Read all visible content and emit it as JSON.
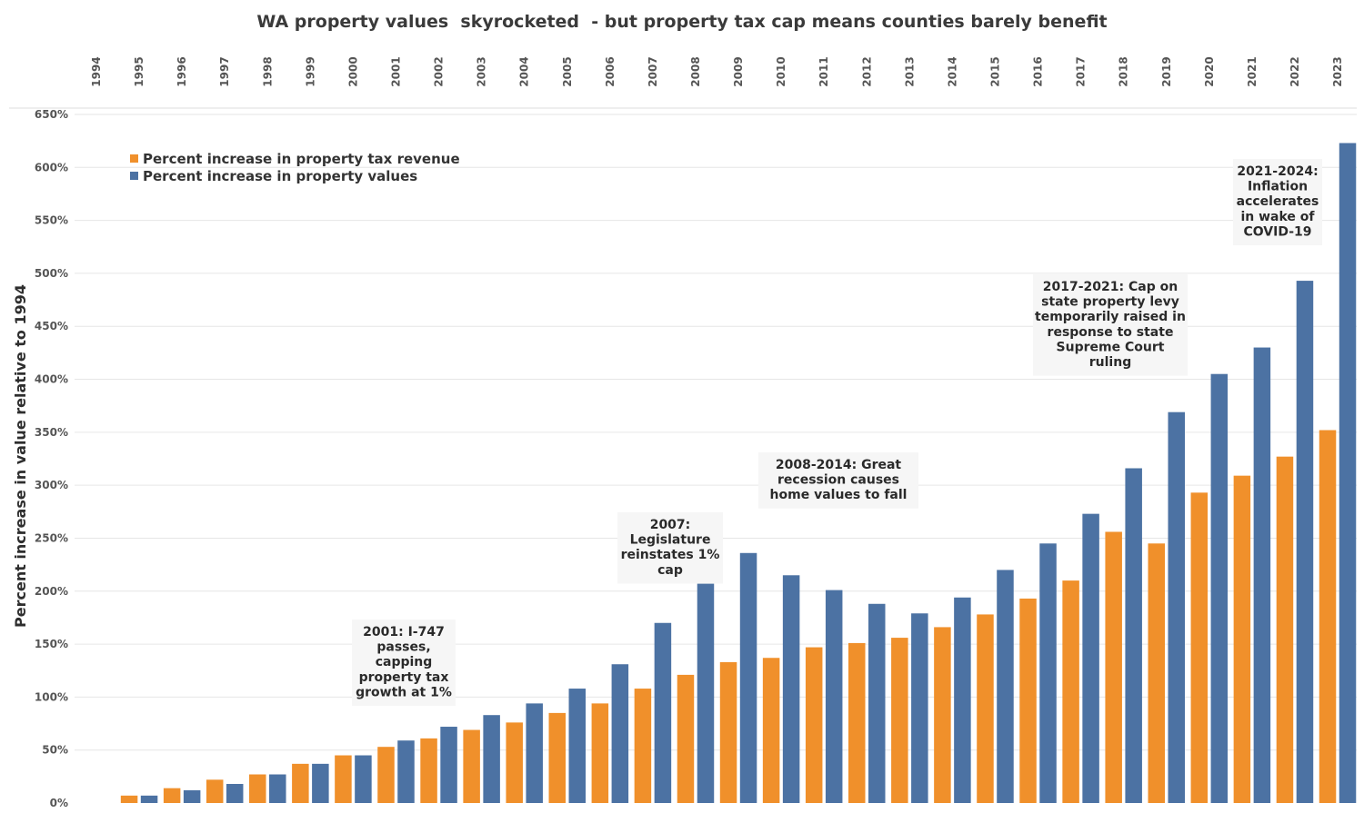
{
  "colors": {
    "series_tax": "#f0902b",
    "series_values": "#4c72a3",
    "annotation_bg": "#f6f6f6",
    "text": "#333333"
  },
  "chart_data": {
    "type": "bar",
    "title": "WA property values  skyrocketed  - but property tax cap means counties barely benefit",
    "ylabel": "Percent increase in value relative to 1994",
    "xlabel": "",
    "ylim": [
      0,
      650
    ],
    "y_ticks": [
      "0%",
      "50%",
      "100%",
      "150%",
      "200%",
      "250%",
      "300%",
      "350%",
      "400%",
      "450%",
      "500%",
      "550%",
      "600%",
      "650%"
    ],
    "y_tick_values": [
      0,
      50,
      100,
      150,
      200,
      250,
      300,
      350,
      400,
      450,
      500,
      550,
      600,
      650
    ],
    "x_axis_position": "top",
    "grid": true,
    "legend_position": "top-left",
    "categories": [
      "1994",
      "1995",
      "1996",
      "1997",
      "1998",
      "1999",
      "2000",
      "2001",
      "2002",
      "2003",
      "2004",
      "2005",
      "2006",
      "2007",
      "2008",
      "2009",
      "2010",
      "2011",
      "2012",
      "2013",
      "2014",
      "2015",
      "2016",
      "2017",
      "2018",
      "2019",
      "2020",
      "2021",
      "2022",
      "2023"
    ],
    "series": [
      {
        "name": "Percent increase in property tax revenue",
        "color": "#f0902b",
        "values": [
          0,
          7,
          14,
          22,
          27,
          37,
          45,
          53,
          61,
          69,
          76,
          85,
          94,
          108,
          121,
          133,
          137,
          147,
          151,
          156,
          166,
          178,
          193,
          210,
          256,
          245,
          293,
          309,
          327,
          352
        ]
      },
      {
        "name": "Percent increase in property values",
        "color": "#4c72a3",
        "values": [
          0,
          7,
          12,
          18,
          27,
          37,
          45,
          59,
          72,
          83,
          94,
          108,
          131,
          170,
          207,
          236,
          215,
          201,
          188,
          179,
          194,
          220,
          245,
          273,
          316,
          369,
          405,
          430,
          493,
          623
        ]
      }
    ],
    "annotations": [
      {
        "lines": [
          "2001: I-747",
          "passes,",
          "capping",
          "property tax",
          "growth  at 1%"
        ]
      },
      {
        "lines": [
          "2007:",
          "Legislature",
          "reinstates 1%",
          "cap"
        ]
      },
      {
        "lines": [
          "2008-2014: Great",
          "recession causes",
          "home values to fall"
        ]
      },
      {
        "lines": [
          "2017-2021: Cap on",
          "state property levy",
          "temporarily raised in",
          "response to state",
          "Supreme Court",
          "ruling"
        ]
      },
      {
        "lines": [
          "2021-2024:",
          "Inflation",
          "accelerates",
          "in wake of",
          "COVID-19"
        ]
      }
    ]
  }
}
